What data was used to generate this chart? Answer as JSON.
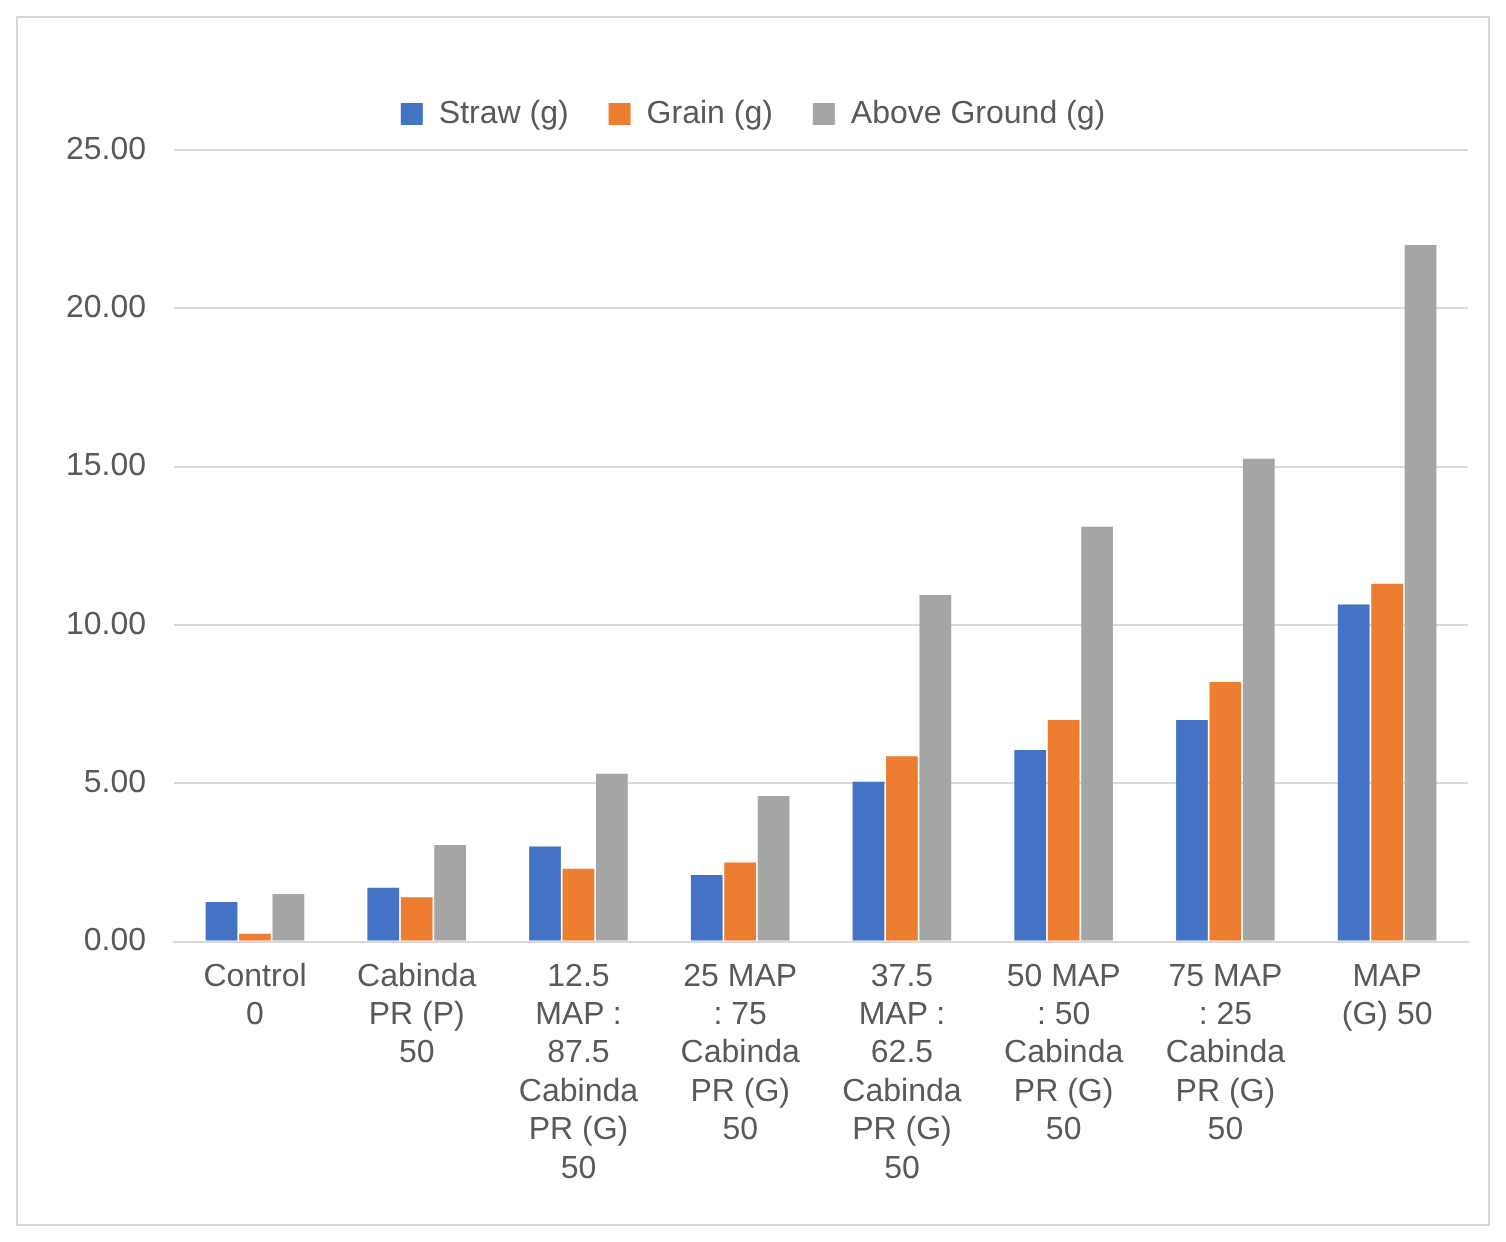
{
  "chart_data": {
    "type": "bar",
    "categories": [
      "Control 0",
      "Cabinda PR (P) 50",
      "12.5 MAP : 87.5 Cabinda PR (G) 50",
      "25 MAP : 75 Cabinda PR (G) 50",
      "37.5 MAP : 62.5 Cabinda PR (G) 50",
      "50 MAP : 50 Cabinda PR (G) 50",
      "75 MAP : 25 Cabinda PR (G) 50",
      "MAP (G) 50"
    ],
    "series": [
      {
        "name": "Straw (g)",
        "color": "#4472c4",
        "values": [
          1.25,
          1.7,
          3.0,
          2.1,
          5.05,
          6.05,
          7.0,
          10.65
        ]
      },
      {
        "name": "Grain (g)",
        "color": "#ed7d31",
        "values": [
          0.25,
          1.4,
          2.3,
          2.5,
          5.85,
          7.0,
          8.2,
          11.3
        ]
      },
      {
        "name": "Above Ground (g)",
        "color": "#a5a5a5",
        "values": [
          1.5,
          3.05,
          5.3,
          4.6,
          10.95,
          13.1,
          15.25,
          22.0
        ]
      }
    ],
    "ylim": [
      0,
      25
    ],
    "yticks": [
      {
        "value": 0,
        "label": "0.00"
      },
      {
        "value": 5,
        "label": "5.00"
      },
      {
        "value": 10,
        "label": "10.00"
      },
      {
        "value": 15,
        "label": "15.00"
      },
      {
        "value": 20,
        "label": "20.00"
      },
      {
        "value": 25,
        "label": "25.00"
      }
    ],
    "grid": "y",
    "legend": "top"
  }
}
